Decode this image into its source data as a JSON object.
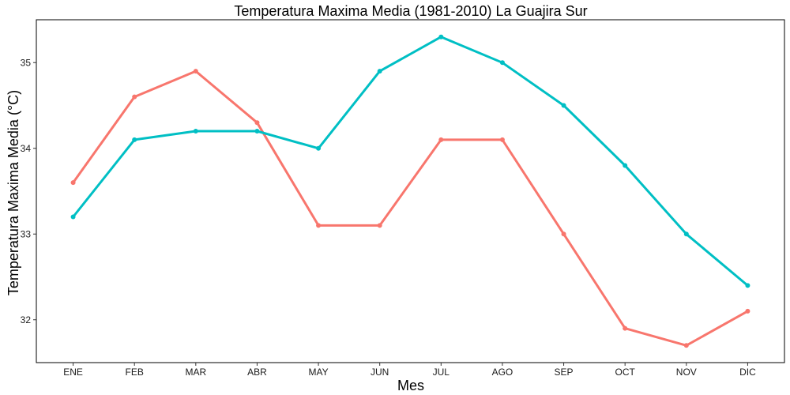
{
  "chart_data": {
    "type": "line",
    "title": "Temperatura Maxima Media (1981-2010)  La Guajira Sur",
    "xlabel": "Mes",
    "ylabel": "Temperatura Maxima Media  (°C)",
    "categories": [
      "ENE",
      "FEB",
      "MAR",
      "ABR",
      "MAY",
      "JUN",
      "JUL",
      "AGO",
      "SEP",
      "OCT",
      "NOV",
      "DIC"
    ],
    "ylim": [
      31.5,
      35.5
    ],
    "yticks": [
      32,
      33,
      34,
      35
    ],
    "grid": false,
    "legend": "none",
    "series": [
      {
        "color": "#F8766D",
        "values": [
          33.6,
          34.6,
          34.9,
          34.3,
          33.1,
          33.1,
          34.1,
          34.1,
          33.0,
          31.9,
          31.7,
          32.1
        ]
      },
      {
        "color": "#00BFC4",
        "values": [
          33.2,
          34.1,
          34.2,
          34.2,
          34.0,
          34.9,
          35.3,
          35.0,
          34.5,
          33.8,
          33.0,
          32.4
        ]
      }
    ]
  }
}
